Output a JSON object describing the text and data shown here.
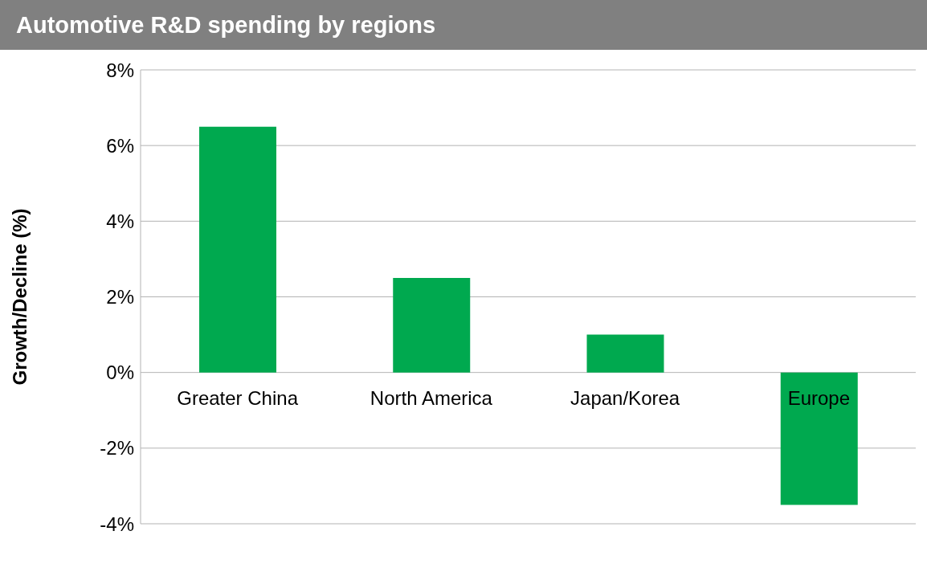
{
  "chart_data": {
    "type": "bar",
    "title": "Automotive R&D spending by regions",
    "ylabel": "Growth/Decline (%)",
    "categories": [
      "Greater China",
      "North America",
      "Japan/Korea",
      "Europe"
    ],
    "values": [
      6.5,
      2.5,
      1.0,
      -3.5
    ],
    "color": "#00a94f",
    "ylim": [
      -4,
      8
    ],
    "yticks": [
      {
        "value": -4,
        "label": "-4%"
      },
      {
        "value": -2,
        "label": "-2%"
      },
      {
        "value": 0,
        "label": "0%"
      },
      {
        "value": 2,
        "label": "2%"
      },
      {
        "value": 4,
        "label": "4%"
      },
      {
        "value": 6,
        "label": "6%"
      },
      {
        "value": 8,
        "label": "8%"
      }
    ],
    "grid": "y",
    "legend": false
  }
}
